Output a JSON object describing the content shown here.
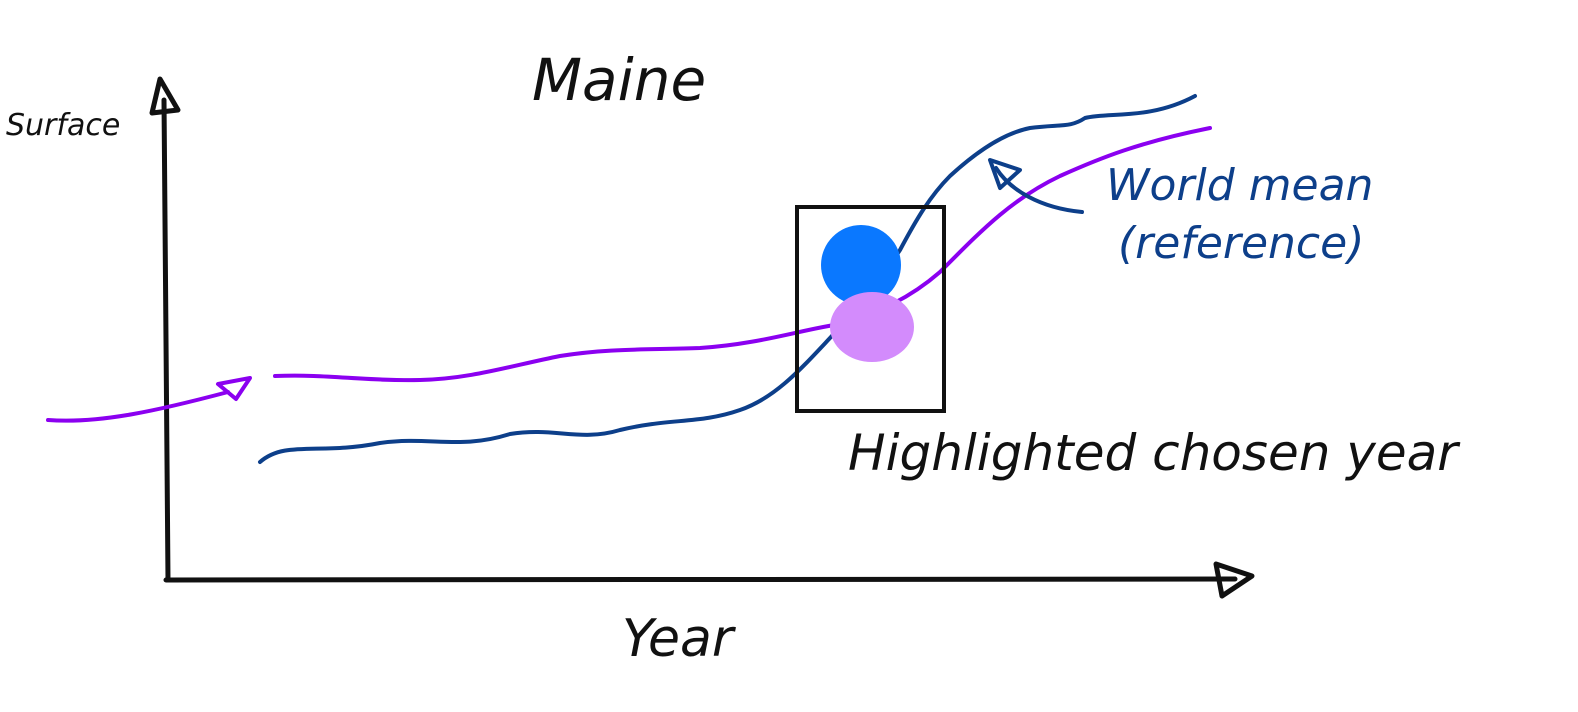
{
  "title": "Maine",
  "axes": {
    "y_label": "Surface",
    "x_label": "Year"
  },
  "annotations": {
    "highlight_label": "Highlighted chosen year",
    "reference_line1": "World mean",
    "reference_line2": "(reference)"
  },
  "series": [
    {
      "id": "state",
      "color": "#8b00f0"
    },
    {
      "id": "world_mean",
      "color": "#0d3f8a"
    }
  ],
  "markers": [
    {
      "id": "world_mean_point",
      "color": "#0a78ff"
    },
    {
      "id": "state_point",
      "color": "#d38bfc"
    }
  ],
  "colors": {
    "axis": "#111111",
    "reference_text": "#0d3f8a",
    "highlight_box": "#111111"
  }
}
